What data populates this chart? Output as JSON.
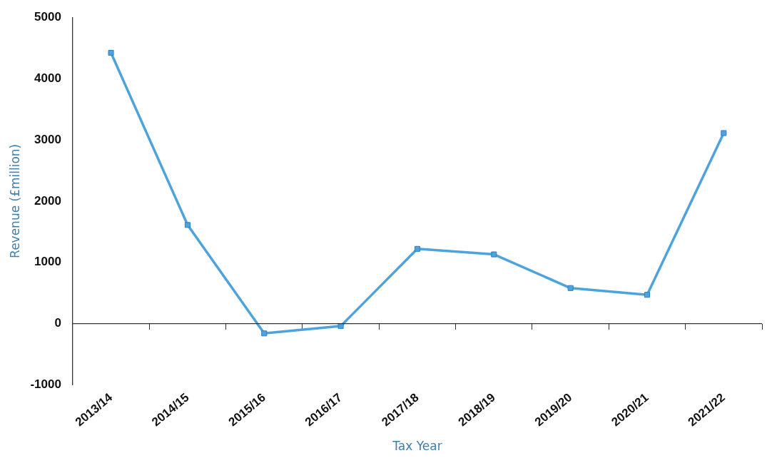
{
  "chart_data": {
    "type": "line",
    "xlabel": "Tax Year",
    "ylabel": "Revenue (£million)",
    "categories": [
      "2013/14",
      "2014/15",
      "2015/16",
      "2016/17",
      "2017/18",
      "2018/19",
      "2019/20",
      "2020/21",
      "2021/22"
    ],
    "series": [
      {
        "color": "#4ea3dc",
        "values": [
          4420,
          1610,
          -160,
          -40,
          1220,
          1130,
          580,
          470,
          3110
        ]
      }
    ],
    "ylim": [
      -1000,
      5000
    ],
    "yticks": [
      -1000,
      0,
      1000,
      2000,
      3000,
      4000,
      5000
    ],
    "ref_lines": [
      {
        "axis": "y",
        "value": 0,
        "color": "#333333"
      }
    ],
    "grid": false,
    "legend": false,
    "marker": "square",
    "line_style": "solid"
  }
}
